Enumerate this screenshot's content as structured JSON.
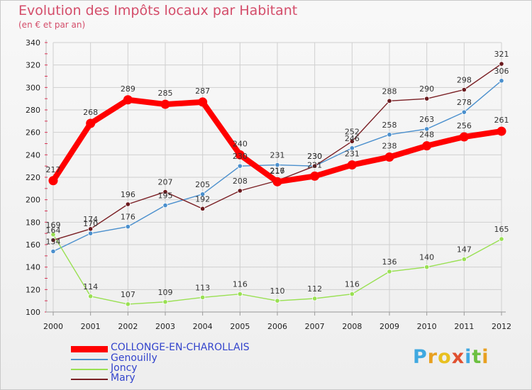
{
  "title": "Evolution des Impôts locaux par Habitant",
  "subtitle": "(en € et par an)",
  "brand": "Proxiti",
  "chart_data": {
    "type": "line",
    "title": "Evolution des Impôts locaux par Habitant",
    "subtitle": "(en € et par an)",
    "xlabel": "",
    "ylabel": "",
    "x": [
      "2000",
      "2001",
      "2002",
      "2003",
      "2004",
      "2005",
      "2006",
      "2007",
      "2008",
      "2009",
      "2010",
      "2011",
      "2012"
    ],
    "ylim": [
      100,
      340
    ],
    "yticks": [
      "100",
      "120",
      "140",
      "160",
      "180",
      "200",
      "220",
      "240",
      "260",
      "280",
      "300",
      "320",
      "340"
    ],
    "grid": true,
    "legend": "bottom-left",
    "series": [
      {
        "name": "COLLONGE-EN-CHAROLLAIS",
        "color": "#ff0000",
        "values": [
          217,
          268,
          289,
          285,
          287,
          240,
          216,
          221,
          231,
          238,
          248,
          256,
          261
        ]
      },
      {
        "name": "Genouilly",
        "color": "#4a8fcd",
        "values": [
          154,
          170,
          176,
          195,
          205,
          230,
          231,
          230,
          246,
          258,
          263,
          278,
          306
        ]
      },
      {
        "name": "Joncy",
        "color": "#99e052",
        "values": [
          169,
          114,
          107,
          109,
          113,
          116,
          110,
          112,
          116,
          136,
          140,
          147,
          165
        ]
      },
      {
        "name": "Mary",
        "color": "#7a1f24",
        "values": [
          164,
          174,
          196,
          207,
          192,
          208,
          217,
          230,
          252,
          288,
          290,
          298,
          321
        ]
      }
    ]
  }
}
